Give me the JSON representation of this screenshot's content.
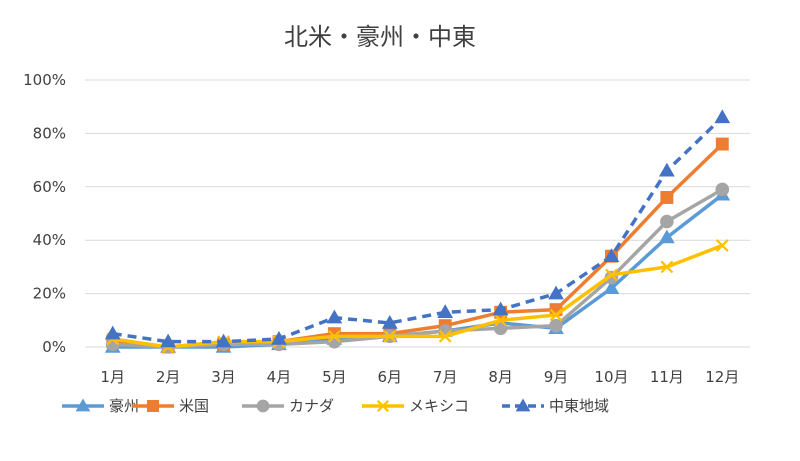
{
  "chart_data": {
    "type": "line",
    "title": "北米・豪州・中東",
    "xlabel": "",
    "ylabel": "",
    "categories": [
      "1月",
      "2月",
      "3月",
      "4月",
      "5月",
      "6月",
      "7月",
      "8月",
      "9月",
      "10月",
      "11月",
      "12月"
    ],
    "ylim": [
      0,
      100
    ],
    "yticks": [
      "0%",
      "20%",
      "40%",
      "60%",
      "80%",
      "100%"
    ],
    "grid": true,
    "legend_position": "bottom",
    "series": [
      {
        "name": "豪州",
        "color": "#5B9BD5",
        "marker": "triangle",
        "dash": false,
        "values": [
          0,
          0,
          0,
          1,
          3,
          4,
          6,
          9,
          7,
          22,
          41,
          57
        ]
      },
      {
        "name": "米国",
        "color": "#ED7D31",
        "marker": "square",
        "dash": false,
        "values": [
          2,
          0,
          1,
          2,
          5,
          5,
          8,
          13,
          14,
          34,
          56,
          76
        ]
      },
      {
        "name": "カナダ",
        "color": "#A5A5A5",
        "marker": "circle",
        "dash": false,
        "values": [
          1,
          0,
          1,
          1,
          2,
          4,
          6,
          7,
          8,
          26,
          47,
          59
        ]
      },
      {
        "name": "メキシコ",
        "color": "#FFC000",
        "marker": "x",
        "dash": false,
        "values": [
          3,
          0,
          2,
          2,
          4,
          4,
          4,
          10,
          12,
          27,
          30,
          38
        ]
      },
      {
        "name": "中東地域",
        "color": "#4472C4",
        "marker": "triangle",
        "dash": true,
        "values": [
          5,
          2,
          2,
          3,
          11,
          9,
          13,
          14,
          20,
          34,
          66,
          86
        ]
      }
    ]
  }
}
